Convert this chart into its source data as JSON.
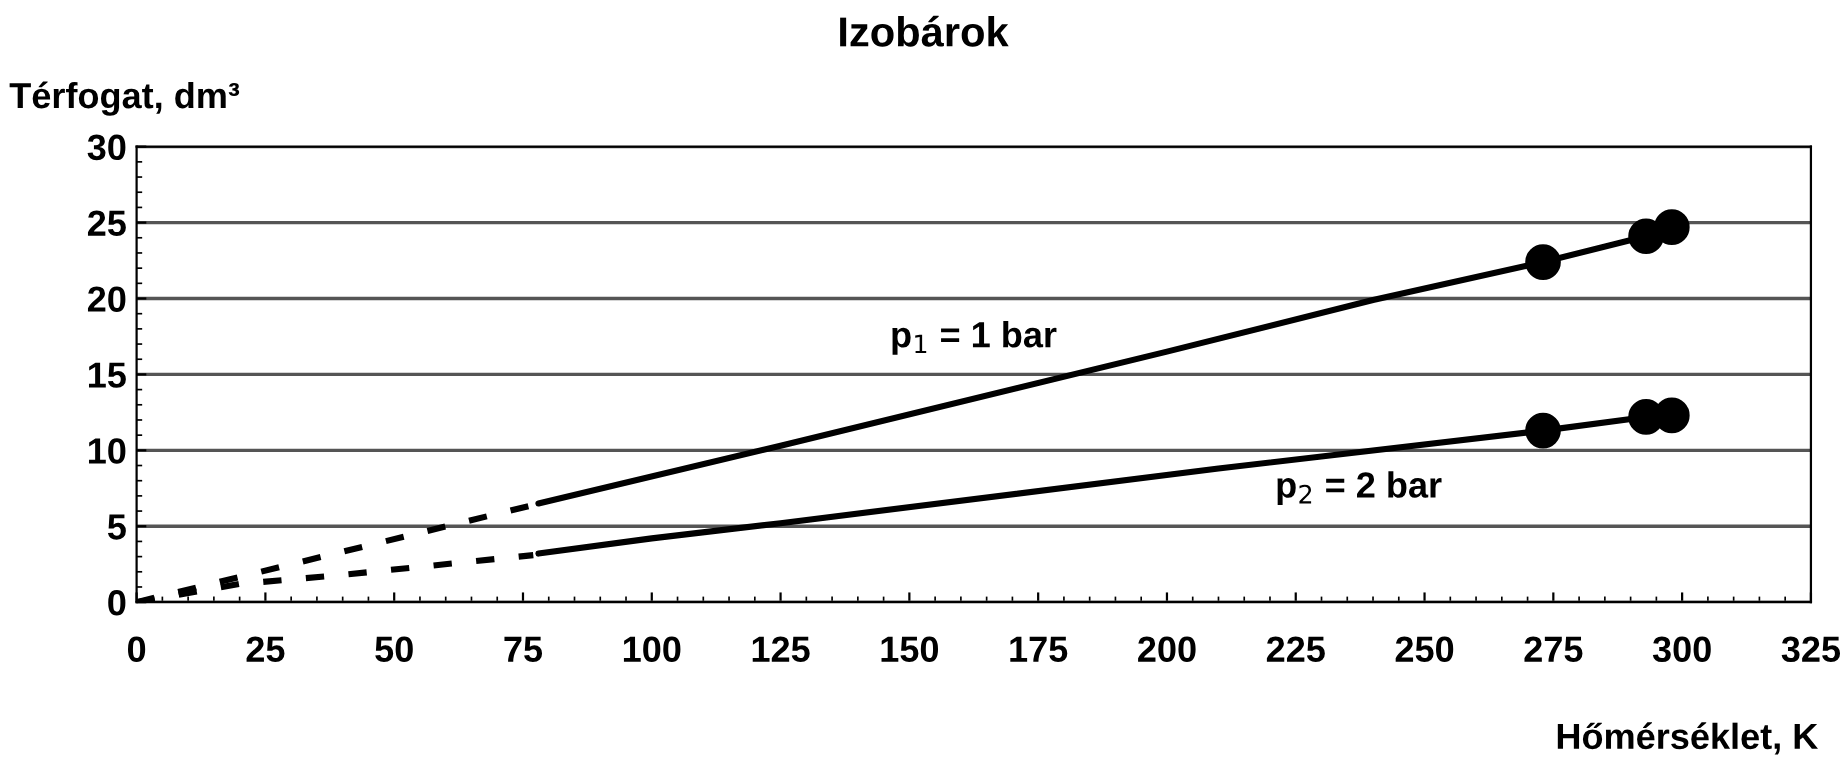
{
  "chart_data": {
    "type": "line",
    "title": "Izobárok",
    "xlabel": "Hőmérséklet, K",
    "ylabel": "Térfogat, dm³",
    "xlim": [
      0,
      325
    ],
    "xticks": [
      0,
      25,
      50,
      75,
      100,
      125,
      150,
      175,
      200,
      225,
      250,
      275,
      300,
      325
    ],
    "ylim": [
      0,
      30
    ],
    "yticks": [
      0,
      5,
      10,
      15,
      20,
      25,
      30
    ],
    "grid": "y",
    "legend": false,
    "series": [
      {
        "color": "#000000",
        "line_style": "dashed",
        "marker": "none",
        "x": [
          0,
          77
        ],
        "values": [
          0,
          6.4
        ]
      },
      {
        "color": "#000000",
        "line_style": "solid",
        "marker": "none",
        "x": [
          78,
          125,
          200,
          240,
          273,
          293,
          298
        ],
        "values": [
          6.5,
          10.3,
          16.5,
          19.9,
          22.4,
          24.1,
          24.7
        ]
      },
      {
        "color": "#000000",
        "line_style": "dashed",
        "marker": "none",
        "x": [
          0,
          20,
          40,
          77
        ],
        "values": [
          0,
          1.2,
          1.8,
          3.1
        ]
      },
      {
        "color": "#000000",
        "line_style": "solid",
        "marker": "none",
        "x": [
          78,
          100,
          125,
          210,
          273,
          293,
          298
        ],
        "values": [
          3.2,
          4.2,
          5.2,
          8.8,
          11.3,
          12.2,
          12.3
        ]
      },
      {
        "type": "scatter",
        "color": "#000000",
        "marker": "circle",
        "x": [
          273,
          293,
          298
        ],
        "values": [
          22.4,
          24.1,
          24.7
        ]
      },
      {
        "type": "scatter",
        "color": "#000000",
        "marker": "circle",
        "x": [
          273,
          293,
          298
        ],
        "values": [
          11.3,
          12.2,
          12.3
        ]
      }
    ],
    "annotations": [
      "p$_{1}$ = 1 bar",
      "p$_{2}$ = 2 bar"
    ]
  }
}
